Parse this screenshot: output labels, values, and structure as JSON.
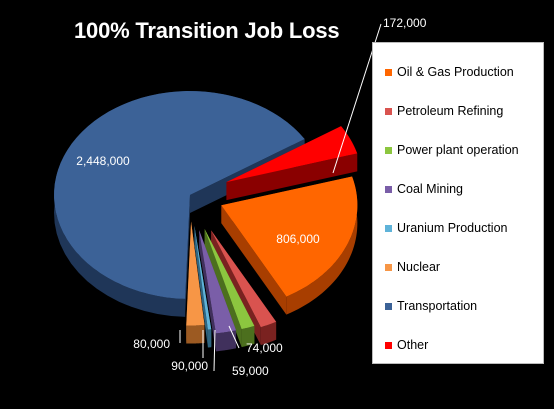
{
  "chart_data": {
    "type": "pie",
    "title": "100% Transition Job Loss",
    "slices": [
      {
        "name": "Oil & Gas Production",
        "value": 806000,
        "label": "806,000",
        "color": "#ff6600",
        "dark": "#a83e00"
      },
      {
        "name": "Petroleum Refining",
        "value": 74000,
        "label": "74,000",
        "color": "#d9534f",
        "dark": "#7a2220"
      },
      {
        "name": "Power plant operation",
        "value": 59000,
        "label": "59,000",
        "color": "#8cc63f",
        "dark": "#4c6f1e"
      },
      {
        "name": "Coal Mining",
        "value": 90000,
        "label": "90,000",
        "color": "#7a5ea8",
        "dark": "#40305c"
      },
      {
        "name": "Uranium Production",
        "value": 15000,
        "label": "",
        "color": "#5fb3d9",
        "dark": "#2f6580"
      },
      {
        "name": "Nuclear",
        "value": 80000,
        "label": "80,000",
        "color": "#f79646",
        "dark": "#9c5a22"
      },
      {
        "name": "Transportation",
        "value": 2448000,
        "label": "2,448,000",
        "color": "#3c6297",
        "dark": "#1f3658"
      },
      {
        "name": "Other",
        "value": 172000,
        "label": "172,000",
        "color": "#ff0000",
        "dark": "#8a0000"
      }
    ],
    "legend_position": "right"
  }
}
